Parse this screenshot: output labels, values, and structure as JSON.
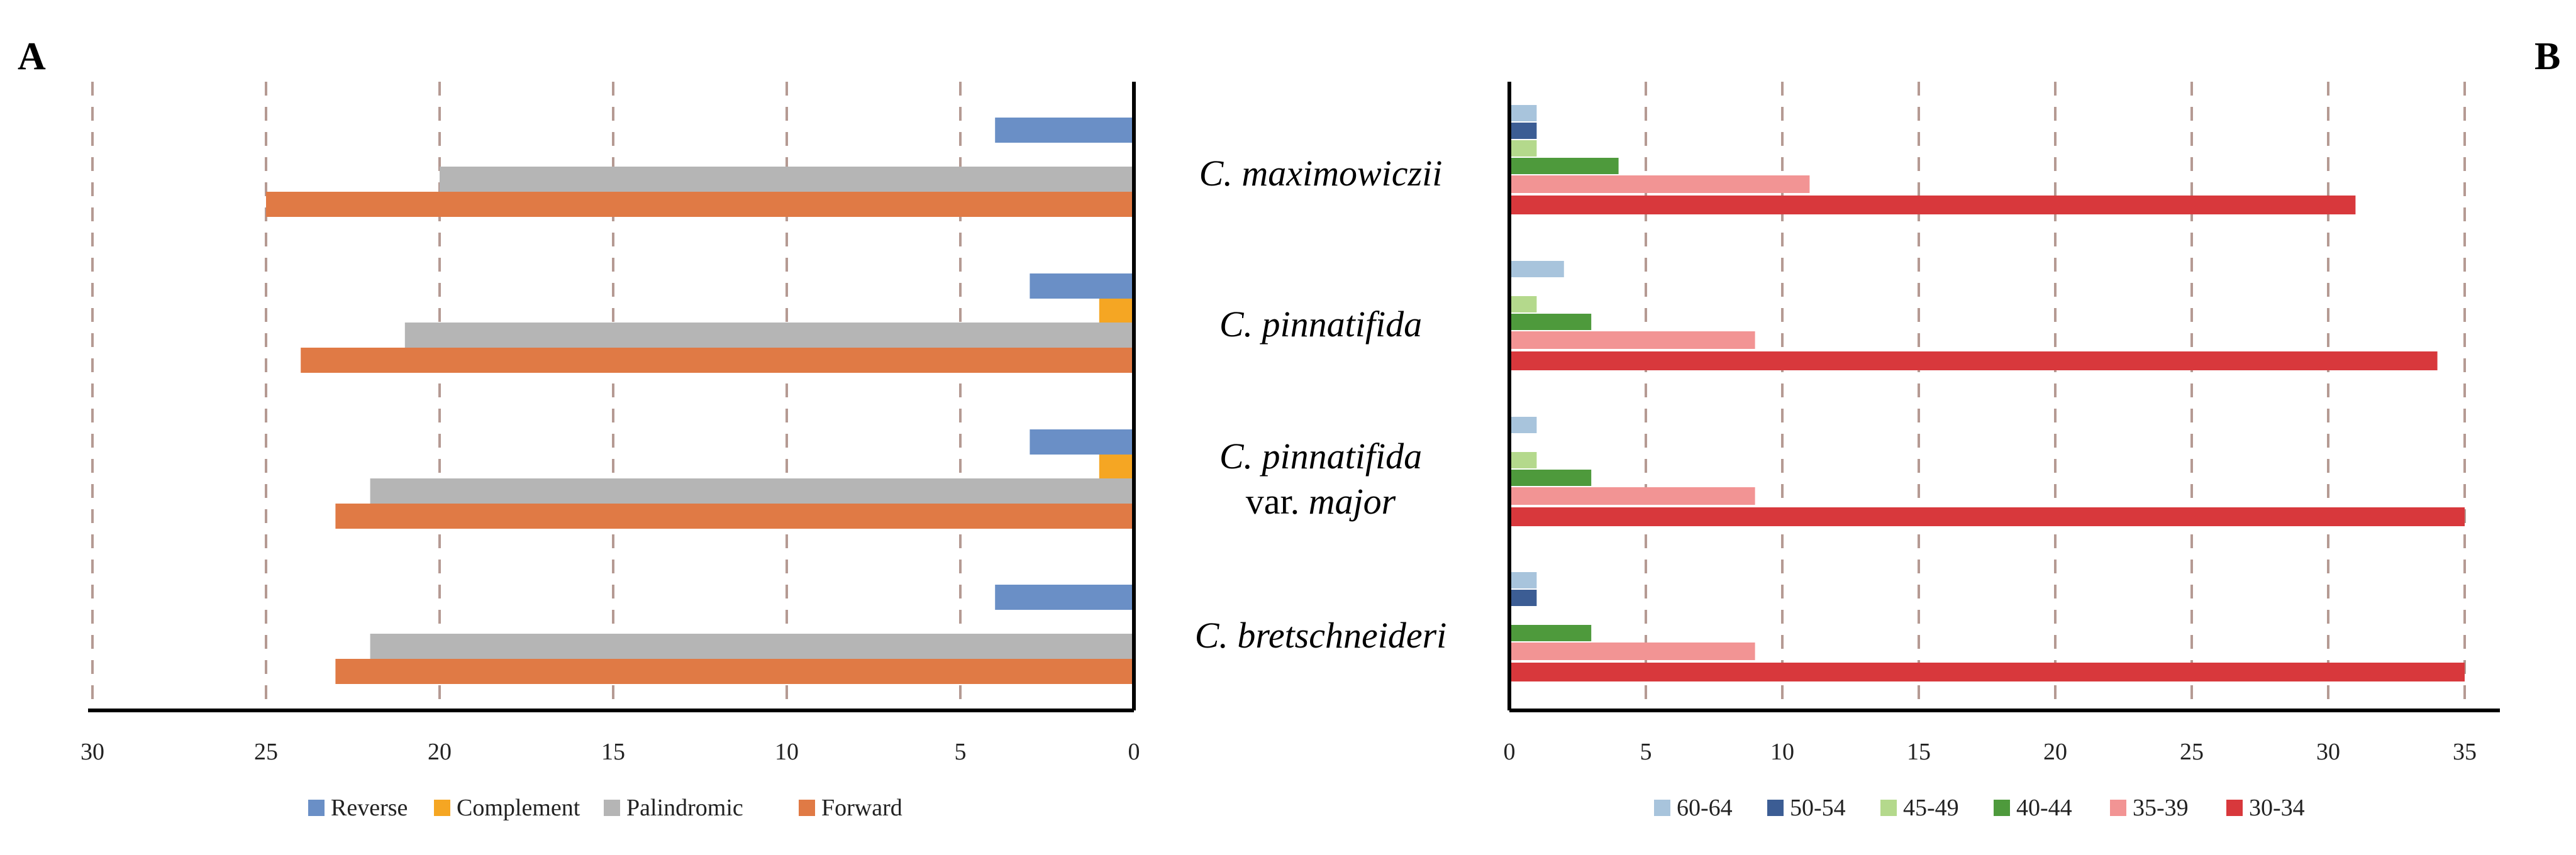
{
  "panel_labels": {
    "left": "A",
    "right": "B"
  },
  "taxa": [
    {
      "name": "C. maximowiczii",
      "line1": "C. maximowiczii"
    },
    {
      "name": "C. pinnatifida",
      "line1": "C. pinnatifida"
    },
    {
      "name": "C. pinnatifida var. major",
      "line1": "C. pinnatifida",
      "line2_prefix": "var. ",
      "line2_italic": "major"
    },
    {
      "name": "C. bretschneideri",
      "line1": "C. bretschneideri"
    }
  ],
  "chart_data": [
    {
      "panel": "A",
      "type": "bar",
      "orientation": "horizontal",
      "x_direction": "reversed",
      "categories": [
        "C. maximowiczii",
        "C. pinnatifida",
        "C. pinnatifida var. major",
        "C. bretschneideri"
      ],
      "series": [
        {
          "name": "Reverse",
          "color": "#6a8fc6",
          "values": [
            4,
            3,
            3,
            4
          ]
        },
        {
          "name": "Complement",
          "color": "#f5a623",
          "values": [
            0,
            1,
            1,
            0
          ]
        },
        {
          "name": "Palindromic",
          "color": "#b5b5b5",
          "values": [
            20,
            21,
            22,
            22
          ]
        },
        {
          "name": "Forward",
          "color": "#e07a45",
          "values": [
            25,
            24,
            23,
            23
          ]
        }
      ],
      "xlim": [
        0,
        30
      ],
      "xticks": [
        30,
        25,
        20,
        15,
        10,
        5,
        0
      ],
      "gridlines": "vertical dashed",
      "legend_position": "bottom"
    },
    {
      "panel": "B",
      "type": "bar",
      "orientation": "horizontal",
      "categories": [
        "C. maximowiczii",
        "C. pinnatifida",
        "C. pinnatifida var. major",
        "C. bretschneideri"
      ],
      "series": [
        {
          "name": "60-64",
          "color": "#a8c4dc",
          "values": [
            1,
            2,
            1,
            1
          ]
        },
        {
          "name": "50-54",
          "color": "#3c5d94",
          "values": [
            1,
            0,
            0,
            1
          ]
        },
        {
          "name": "45-49",
          "color": "#b4d98c",
          "values": [
            1,
            1,
            1,
            0
          ]
        },
        {
          "name": "40-44",
          "color": "#4e9a3c",
          "values": [
            4,
            3,
            3,
            3
          ]
        },
        {
          "name": "35-39",
          "color": "#f29494",
          "values": [
            11,
            9,
            9,
            9
          ]
        },
        {
          "name": "30-34",
          "color": "#d8383c",
          "values": [
            31,
            34,
            35,
            35
          ]
        }
      ],
      "xlim": [
        0,
        36
      ],
      "xticks": [
        0,
        5,
        10,
        15,
        20,
        25,
        30,
        35
      ],
      "gridlines": "vertical dashed",
      "legend_position": "bottom"
    }
  ]
}
